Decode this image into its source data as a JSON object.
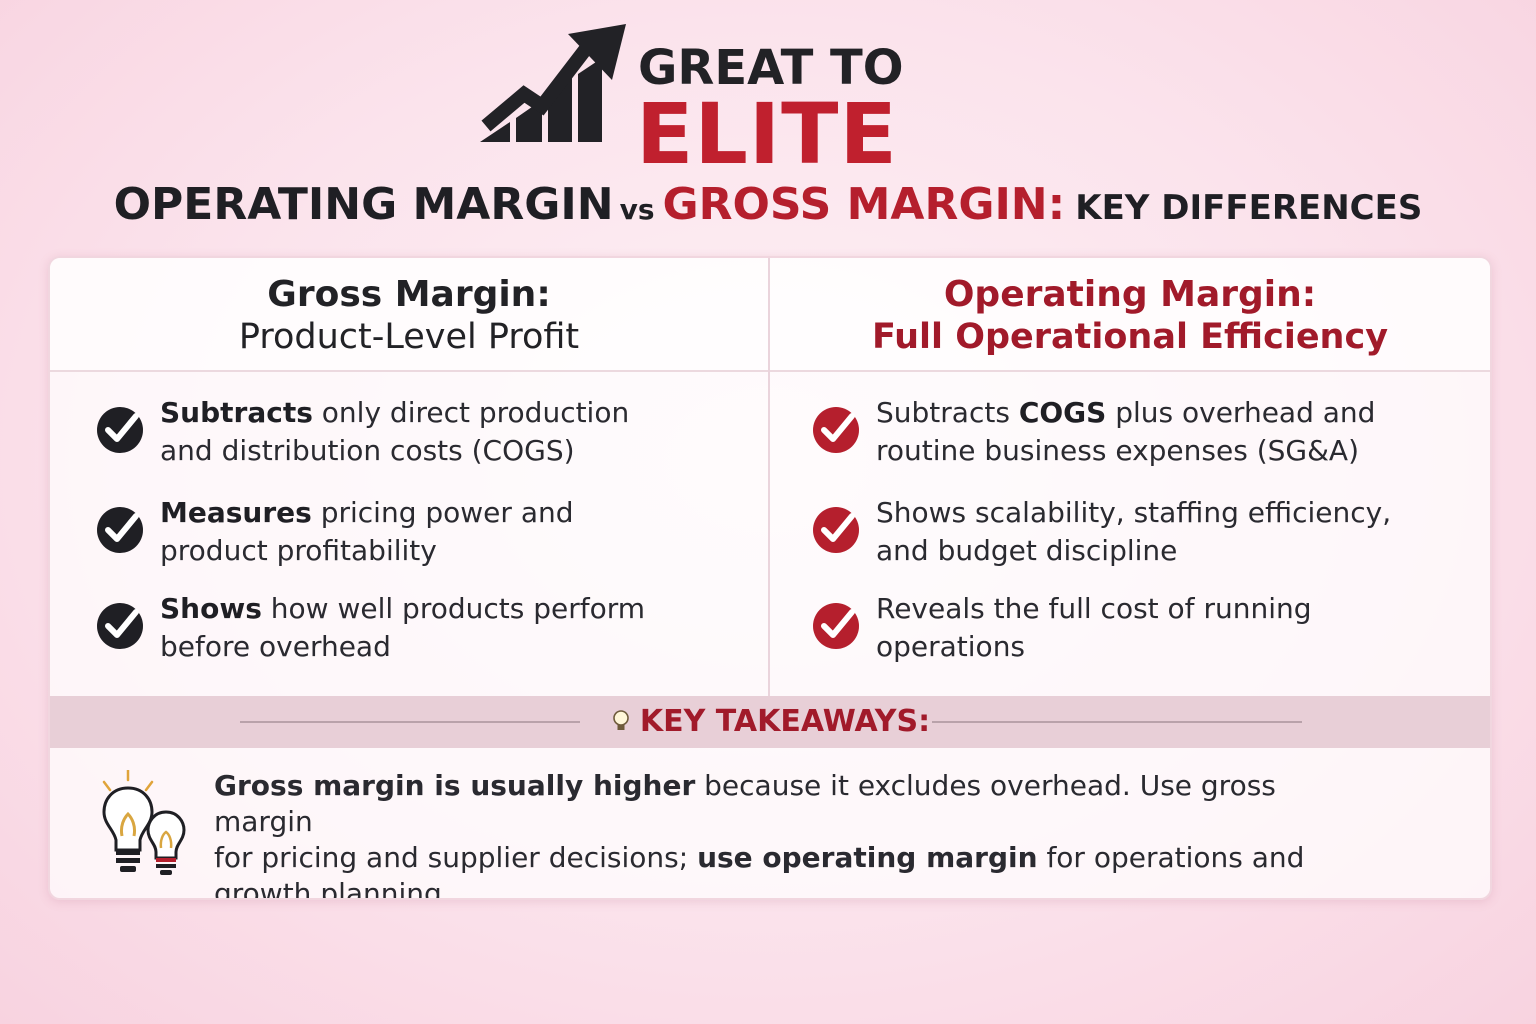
{
  "logo": {
    "line1": "GREAT TO",
    "line2": "ELITE",
    "icon": "rising-bars-arrow-icon"
  },
  "title": {
    "part1": "OPERATING MARGIN",
    "vs": "vs",
    "part2": "GROSS MARGIN:",
    "part3": "KEY DIFFERENCES"
  },
  "gross": {
    "heading": "Gross Margin:",
    "subheading": "Product-Level Profit",
    "check_icon": "check-circle-icon",
    "check_color": "#1f1f24",
    "items": [
      {
        "bold": "Subtracts",
        "rest1": " only direct production",
        "rest2": "and distribution costs (COGS)"
      },
      {
        "bold": "Measures",
        "rest1": " pricing power and",
        "rest2": "product profitability"
      },
      {
        "bold": "Shows",
        "rest1": " how well products perform",
        "rest2": "before overhead"
      }
    ]
  },
  "operating": {
    "heading": "Operating Margin:",
    "subheading": "Full Operational Efficiency",
    "check_icon": "check-circle-icon",
    "check_color": "#b51f2d",
    "items": [
      {
        "pre": "Subtracts ",
        "bold": "COGS",
        "rest1": " plus overhead and",
        "rest2": "routine business expenses (SG&A)"
      },
      {
        "line1": "Shows scalability, staffing efficiency,",
        "line2": "and budget discipline"
      },
      {
        "line1": "Reveals the full cost of running",
        "line2": "operations"
      }
    ]
  },
  "takeaways": {
    "label": "KEY TAKEAWAYS:",
    "icon": "lightbulb-icon",
    "bold1": "Gross margin is usually higher",
    "text1": " because it excludes overhead. Use gross margin",
    "text2": "for pricing and supplier decisions; ",
    "bold2": "use operating margin",
    "text3": " for operations and",
    "text4": "growth planning."
  },
  "colors": {
    "accent": "#b51f2d",
    "dark": "#1f1f24"
  }
}
